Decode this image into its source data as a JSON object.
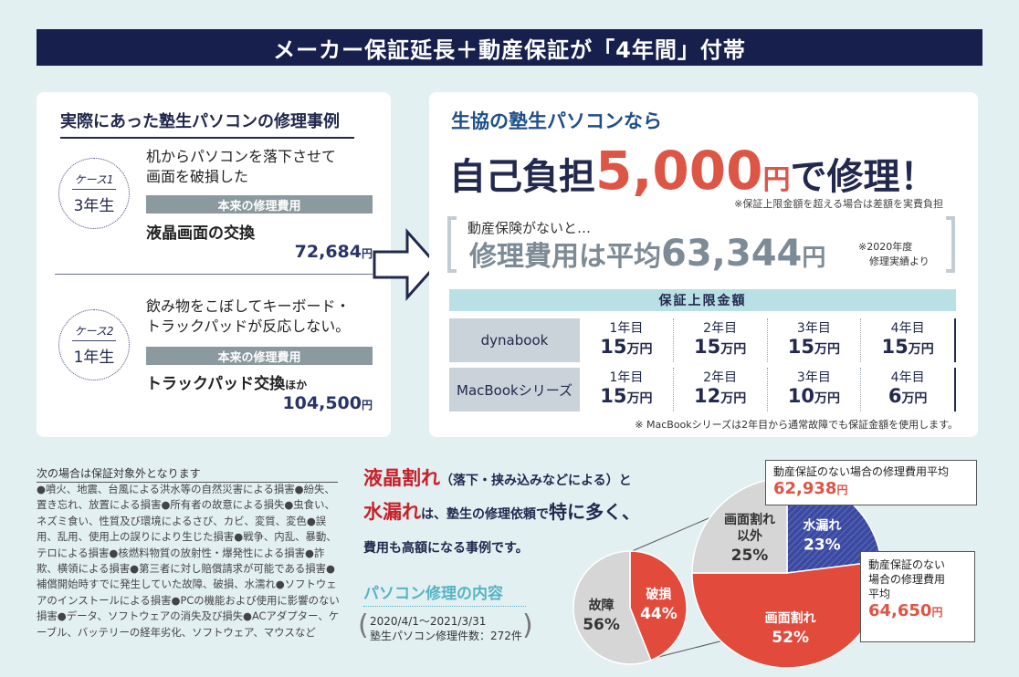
{
  "banner": {
    "title": "メーカー保証延長＋動産保証が「4年間」付帯"
  },
  "left": {
    "title": "実際にあった塾生パソコンの修理事例",
    "cases": [
      {
        "label": "ケース1",
        "year": "3年生",
        "desc1": "机からパソコンを落下させて",
        "desc2": "画面を破損した",
        "bar": "本来の修理費用",
        "repair": "液晶画面の交換",
        "repair_suffix": "",
        "price": "72,684",
        "unit": "円"
      },
      {
        "label": "ケース2",
        "year": "1年生",
        "desc1": "飲み物をこぼしてキーボード・",
        "desc2": "トラックパッドが反応しない。",
        "bar": "本来の修理費用",
        "repair": "トラックパッド交換",
        "repair_suffix": "ほか",
        "price": "104,500",
        "unit": "円"
      }
    ]
  },
  "right": {
    "sub": "生協の塾生パソコンなら",
    "main_pre": "自己負担",
    "main_amount": "5,000",
    "main_yen": "円",
    "main_post": "で修理！",
    "note1": "※保証上限金額を超える場合は差額を実費負担",
    "nohosho": "動産保険がないと…",
    "avg_pre": "修理費用は平均",
    "avg_amount": "63,344",
    "avg_yen": "円",
    "note2_l1": "※2020年度",
    "note2_l2": "修理実績より",
    "limit_head": "保証上限金額",
    "rows": [
      {
        "name": "dynabook",
        "cells": [
          {
            "yr": "1年目",
            "amt": "15",
            "u": "万円"
          },
          {
            "yr": "2年目",
            "amt": "15",
            "u": "万円"
          },
          {
            "yr": "3年目",
            "amt": "15",
            "u": "万円"
          },
          {
            "yr": "4年目",
            "amt": "15",
            "u": "万円"
          }
        ]
      },
      {
        "name": "MacBookシリーズ",
        "cells": [
          {
            "yr": "1年目",
            "amt": "15",
            "u": "万円"
          },
          {
            "yr": "2年目",
            "amt": "12",
            "u": "万円"
          },
          {
            "yr": "3年目",
            "amt": "10",
            "u": "万円"
          },
          {
            "yr": "4年目",
            "amt": "6",
            "u": "万円"
          }
        ]
      }
    ],
    "note3": "※ MacBookシリーズは2年目から通常故障でも保証金額を使用します。"
  },
  "exclusions": {
    "title": "次の場合は保証対象外となります",
    "body": "●噴火、地震、台風による洪水等の自然災害による損害●紛失、置き忘れ、放置による損害●所有者の故意による損失●虫食い、ネズミ食い、性質及び環境によるさび、カビ、変質、変色●誤用、乱用、使用上の誤りにより生じた損害●戦争、内乱、暴動、テロによる損害●核燃料物質の放射性・爆発性による損害●詐欺、横領による損害●第三者に対し賠償請求が可能である損害●補償開始時すでに発生していた故障、破損、水濡れ●ソフトウェアのインストールによる損害●PCの機能および使用に影響のない損害●データ、ソフトウェアの消失及び損失●ACアダプター、ケーブル、バッテリーの経年劣化、ソフトウェア、マウスなど"
  },
  "middle": {
    "red1": "液晶割れ",
    "t1": "（落下・挟み込みなどによる）と",
    "red2": "水漏れ",
    "t2": "は、塾生の修理依頼で",
    "t3": "特に多く、",
    "t4": "費用も高額になる事例です。",
    "pc_title": "パソコン修理の内容",
    "period1": "2020/4/1～2021/3/31",
    "period2": "塾生パソコン修理件数：272件"
  },
  "chart_data": [
    {
      "type": "pie",
      "title": "",
      "labels": [
        "破損",
        "故障"
      ],
      "values": [
        44,
        56
      ],
      "unit": "%",
      "colors": [
        "#e24a3b",
        "#d6d6d6"
      ]
    },
    {
      "type": "pie",
      "title": "",
      "labels": [
        "水漏れ",
        "画面割れ",
        "画面割れ以外"
      ],
      "label_lines": [
        [
          "水漏れ"
        ],
        [
          "画面割れ"
        ],
        [
          "画面割れ",
          "以外"
        ]
      ],
      "values": [
        23,
        52,
        25
      ],
      "unit": "%",
      "colors": [
        "#3b4aa0",
        "#e24a3b",
        "#d6d6d6"
      ]
    }
  ],
  "callouts": {
    "top_text": "動産保証のない場合の修理費用平均",
    "top_price": "62,938",
    "top_unit": "円",
    "right_text1": "動産保証のない",
    "right_text2": "場合の修理費用",
    "right_text3": "平均",
    "right_price": "64,650",
    "right_unit": "円"
  }
}
